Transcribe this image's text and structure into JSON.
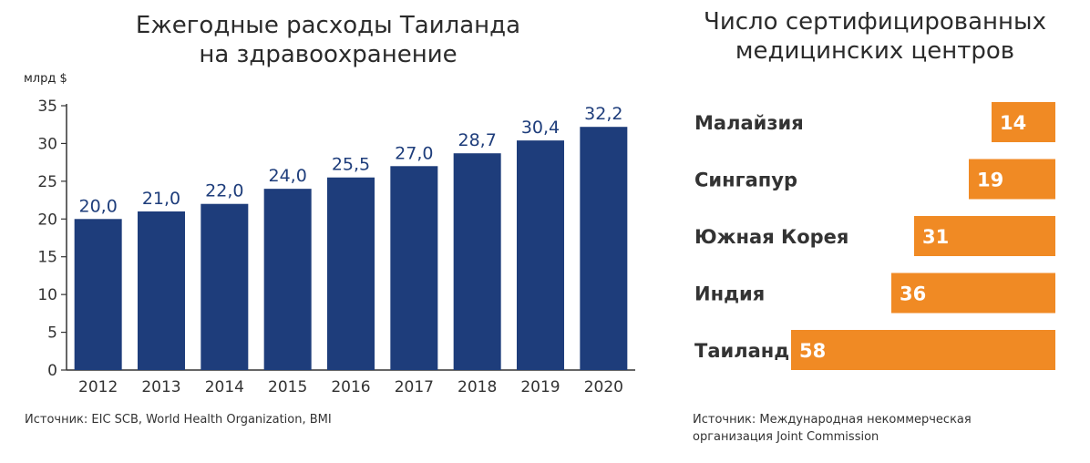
{
  "left": {
    "title_line1": "Ежегодные расходы Таиланда",
    "title_line2": "на здравоохранение",
    "unit": "млрд $",
    "source": "Источник: EIC SCB, World Health Organization, BMI"
  },
  "right": {
    "title_line1": "Число сертифицированных",
    "title_line2": "медицинских центров",
    "source_line1": "Источник: Международная некоммерческая",
    "source_line2": "организация Joint Commission"
  },
  "colors": {
    "bar": "#1e3d7b",
    "hbar": "#f08a24"
  },
  "chart_data": [
    {
      "type": "bar",
      "title": "Ежегодные расходы Таиланда на здравоохранение",
      "ylabel": "млрд $",
      "categories": [
        "2012",
        "2013",
        "2014",
        "2015",
        "2016",
        "2017",
        "2018",
        "2019",
        "2020"
      ],
      "values": [
        20.0,
        21.0,
        22.0,
        24.0,
        25.5,
        27.0,
        28.7,
        30.4,
        32.2
      ],
      "value_labels": [
        "20,0",
        "21,0",
        "22,0",
        "24,0",
        "25,5",
        "27,0",
        "28,7",
        "30,4",
        "32,2"
      ],
      "ylim": [
        0,
        35
      ],
      "yticks": [
        0,
        5,
        10,
        15,
        20,
        25,
        30,
        35
      ],
      "grid": false
    },
    {
      "type": "bar",
      "orientation": "horizontal",
      "title": "Число сертифицированных медицинских центров",
      "categories": [
        "Малайзия",
        "Сингапур",
        "Южная Корея",
        "Индия",
        "Таиланд"
      ],
      "values": [
        14,
        19,
        31,
        36,
        58
      ]
    }
  ]
}
